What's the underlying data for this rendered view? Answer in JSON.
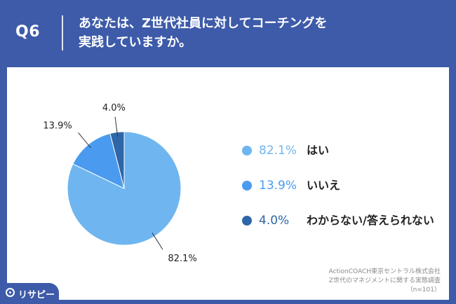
{
  "header": {
    "question_number": "Q6",
    "title_line1": "あなたは、Z世代社員に対してコーチングを",
    "title_line2": "実践していますか。"
  },
  "chart_data": {
    "type": "pie",
    "labels": [
      "はい",
      "いいえ",
      "わからない/答えられない"
    ],
    "values": [
      82.1,
      13.9,
      4.0
    ],
    "value_labels": [
      "82.1%",
      "13.9%",
      "4.0%"
    ],
    "colors": [
      "#6fb6f0",
      "#4a9bef",
      "#2f66a8"
    ],
    "legend_placement": "right"
  },
  "footnote": {
    "line1": "ActionCOACH東京セントラル株式会社",
    "line2": "Z世代のマネジメントに関する実態調査",
    "line3": "（n=101）"
  },
  "logo": {
    "text": "リサピー"
  }
}
